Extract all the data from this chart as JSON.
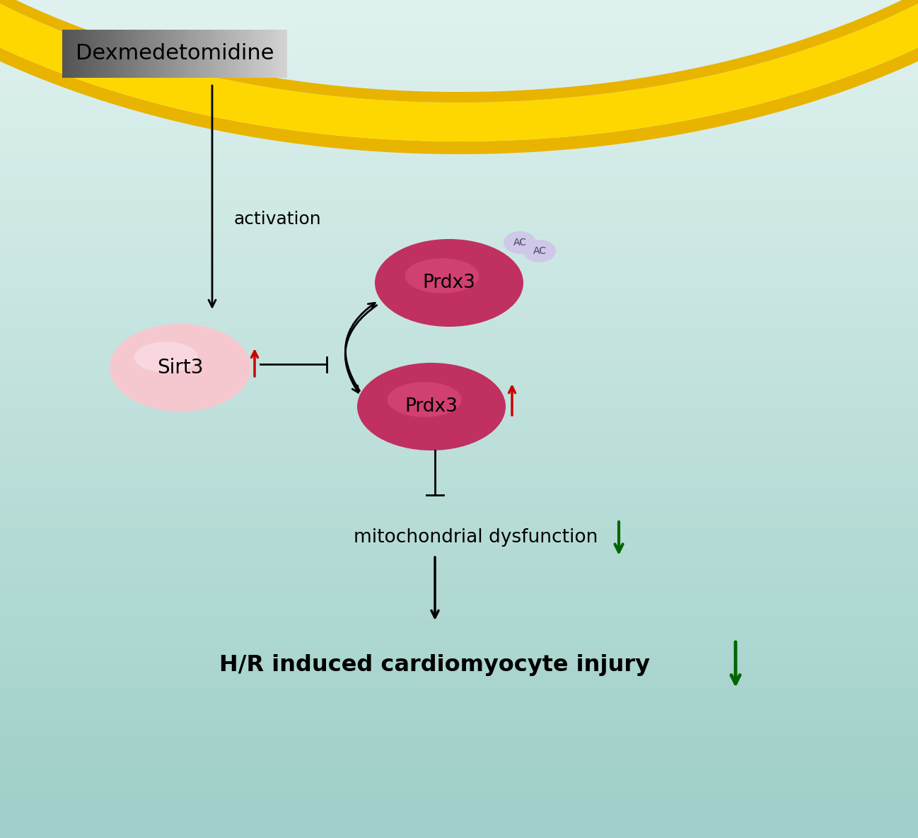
{
  "bg_color_top": "#e8f5f3",
  "bg_color_bottom": "#a8d8d0",
  "fig_width": 12.98,
  "fig_height": 11.85,
  "dpi": 100,
  "dexmed_label": "Dexmedetomidine",
  "activation_label": "activation",
  "sirt3_label": "Sirt3",
  "prdx3_ac_label": "Prdx3",
  "prdx3_label": "Prdx3",
  "mito_label": "mitochondrial dysfunction",
  "hr_label": "H/R induced cardiomyocyte injury",
  "ac_labels": [
    "AC",
    "AC"
  ],
  "sirt3_color": "#f0c8d0",
  "prdx3_color_ac": "#c03060",
  "prdx3_color": "#c03060",
  "ac_circle_color": "#d8c8e8",
  "membrane_outer_color": "#e8b400",
  "membrane_inner_color": "#ffd700",
  "membrane_white": "#ffffff",
  "red_arrow_color": "#cc0000",
  "green_arrow_color": "#006600",
  "black_arrow_color": "#1a1a1a",
  "dexmed_box_color_left": "#555555",
  "dexmed_box_color_right": "#dddddd"
}
